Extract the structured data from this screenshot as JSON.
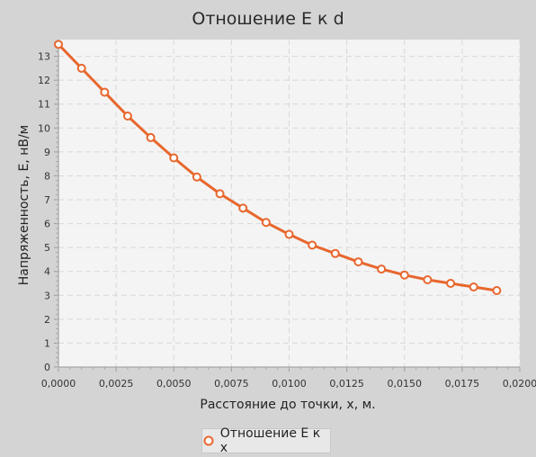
{
  "chart_data": {
    "type": "line",
    "title": "Отношение E к d",
    "xlabel": "Расстояние до точки, x, м.",
    "ylabel": "Напряженность, E, нВ/м",
    "xlim": [
      0,
      0.02
    ],
    "ylim": [
      0,
      13.7
    ],
    "x_ticks": [
      "0,0000",
      "0,0025",
      "0,0050",
      "0,0075",
      "0,0100",
      "0,0125",
      "0,0150",
      "0,0175",
      "0,0200"
    ],
    "y_ticks": [
      "0",
      "1",
      "2",
      "3",
      "4",
      "5",
      "6",
      "7",
      "8",
      "9",
      "10",
      "11",
      "12",
      "13"
    ],
    "grid": true,
    "legend_position": "bottom",
    "series": [
      {
        "name": "Отношение E к x",
        "color": "#e8672e",
        "x": [
          0.0,
          0.001,
          0.002,
          0.003,
          0.004,
          0.005,
          0.006,
          0.007,
          0.008,
          0.009,
          0.01,
          0.011,
          0.012,
          0.013,
          0.014,
          0.015,
          0.016,
          0.017,
          0.018,
          0.019
        ],
        "y": [
          13.5,
          12.5,
          11.5,
          10.5,
          9.6,
          8.75,
          7.95,
          7.25,
          6.65,
          6.05,
          5.55,
          5.1,
          4.75,
          4.4,
          4.1,
          3.85,
          3.65,
          3.5,
          3.35,
          3.2
        ]
      }
    ]
  }
}
